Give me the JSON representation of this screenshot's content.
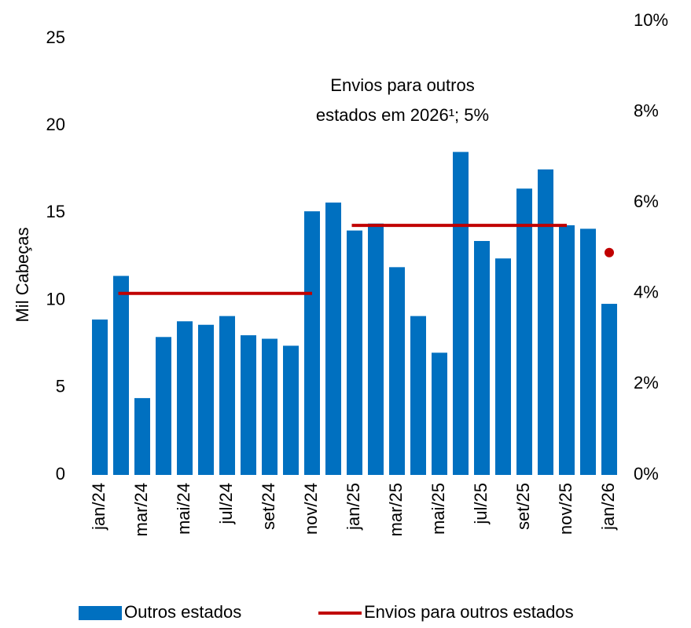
{
  "chart_data": {
    "type": "bar",
    "categories": [
      "jan/24",
      null,
      "mar/24",
      null,
      "mai/24",
      null,
      "jul/24",
      null,
      "set/24",
      null,
      "nov/24",
      null,
      "jan/25",
      null,
      "mar/25",
      null,
      "mai/25",
      null,
      "jul/25",
      null,
      "set/25",
      null,
      "nov/25",
      null,
      "jan/26"
    ],
    "series": [
      {
        "name": "Outros estados",
        "color": "#0070c0",
        "values": [
          8.9,
          11.4,
          4.4,
          7.9,
          8.8,
          8.6,
          9.1,
          8.0,
          7.8,
          7.4,
          15.1,
          15.6,
          14.0,
          14.4,
          11.9,
          9.1,
          7.0,
          18.5,
          13.4,
          12.4,
          16.4,
          17.5,
          14.3,
          14.1,
          9.8
        ]
      },
      {
        "name": "Envios para outros estados",
        "color": "#c00000",
        "type": "line",
        "axis": "y2",
        "values": [
          null,
          4.0,
          4.0,
          4.0,
          4.0,
          4.0,
          4.0,
          4.0,
          4.0,
          4.0,
          4.0,
          null,
          5.5,
          5.5,
          5.5,
          5.5,
          5.5,
          5.5,
          5.5,
          5.5,
          5.5,
          5.5,
          5.5,
          null,
          4.9
        ]
      }
    ],
    "ylabel": "Mil Cabeças",
    "ylim": [
      0,
      25
    ],
    "yticks": [
      0,
      5,
      10,
      15,
      20,
      25
    ],
    "y2lim": [
      0,
      10
    ],
    "y2ticks": [
      {
        "value": 0,
        "label": "0%"
      },
      {
        "value": 2,
        "label": "2%"
      },
      {
        "value": 4,
        "label": "4%"
      },
      {
        "value": 6,
        "label": "6%"
      },
      {
        "value": 8,
        "label": "8%"
      },
      {
        "value": 10,
        "label": "10%"
      }
    ],
    "annotation": [
      "Envios para outros",
      "estados em 2026¹; 5%"
    ],
    "legend": "bottom",
    "grid": false
  }
}
